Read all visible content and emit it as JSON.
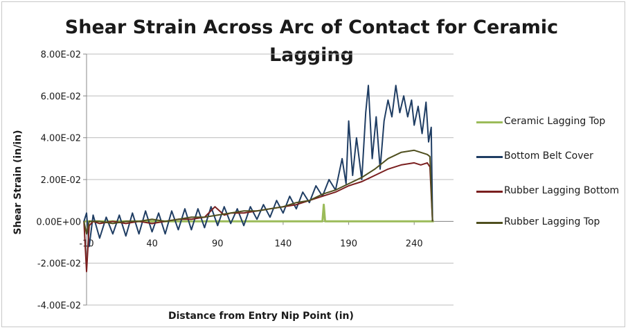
{
  "chart_data": {
    "type": "line",
    "title": "Shear Strain Across Arc of Contact for Ceramic Lagging",
    "xlabel": "Distance from Entry Nip Point (in)",
    "ylabel": "Shear Strain (in/in)",
    "xlim": [
      -10,
      270
    ],
    "ylim": [
      -0.04,
      0.08
    ],
    "x_ticks": [
      -10,
      40,
      90,
      140,
      190,
      240
    ],
    "x_tick_labels": [
      "-10",
      "40",
      "90",
      "140",
      "190",
      "240"
    ],
    "y_ticks": [
      0.08,
      0.06,
      0.04,
      0.02,
      0.0,
      -0.02,
      -0.04
    ],
    "y_tick_labels": [
      "8.00E-02",
      "6.00E-02",
      "4.00E-02",
      "2.00E-02",
      "0.00E+00",
      "-2.00E-02",
      "-4.00E-02"
    ],
    "grid": "horizontal",
    "legend_position": "right",
    "series": [
      {
        "name": "Ceramic Lagging Top",
        "color": "#9bbb59",
        "points": [
          [
            -12,
            0
          ],
          [
            170,
            0
          ],
          [
            171,
            0.008
          ],
          [
            172,
            0
          ],
          [
            255,
            0
          ]
        ]
      },
      {
        "name": "Bottom Belt Cover",
        "color": "#1f3d63",
        "points": [
          [
            -12,
            0
          ],
          [
            -10,
            0.004
          ],
          [
            -8,
            -0.012
          ],
          [
            -5,
            0.003
          ],
          [
            0,
            -0.008
          ],
          [
            5,
            0.002
          ],
          [
            10,
            -0.006
          ],
          [
            15,
            0.003
          ],
          [
            20,
            -0.007
          ],
          [
            25,
            0.004
          ],
          [
            30,
            -0.006
          ],
          [
            35,
            0.005
          ],
          [
            40,
            -0.005
          ],
          [
            45,
            0.004
          ],
          [
            50,
            -0.006
          ],
          [
            55,
            0.005
          ],
          [
            60,
            -0.004
          ],
          [
            65,
            0.006
          ],
          [
            70,
            -0.004
          ],
          [
            75,
            0.006
          ],
          [
            80,
            -0.003
          ],
          [
            85,
            0.007
          ],
          [
            90,
            -0.002
          ],
          [
            95,
            0.007
          ],
          [
            100,
            -0.001
          ],
          [
            105,
            0.006
          ],
          [
            110,
            -0.002
          ],
          [
            115,
            0.007
          ],
          [
            120,
            0.001
          ],
          [
            125,
            0.008
          ],
          [
            130,
            0.002
          ],
          [
            135,
            0.01
          ],
          [
            140,
            0.004
          ],
          [
            145,
            0.012
          ],
          [
            150,
            0.006
          ],
          [
            155,
            0.014
          ],
          [
            160,
            0.009
          ],
          [
            165,
            0.017
          ],
          [
            170,
            0.012
          ],
          [
            175,
            0.02
          ],
          [
            180,
            0.015
          ],
          [
            185,
            0.03
          ],
          [
            188,
            0.018
          ],
          [
            190,
            0.048
          ],
          [
            193,
            0.022
          ],
          [
            196,
            0.04
          ],
          [
            200,
            0.02
          ],
          [
            203,
            0.052
          ],
          [
            205,
            0.065
          ],
          [
            208,
            0.03
          ],
          [
            211,
            0.05
          ],
          [
            214,
            0.025
          ],
          [
            217,
            0.048
          ],
          [
            220,
            0.058
          ],
          [
            223,
            0.05
          ],
          [
            226,
            0.065
          ],
          [
            229,
            0.052
          ],
          [
            232,
            0.06
          ],
          [
            235,
            0.05
          ],
          [
            238,
            0.058
          ],
          [
            240,
            0.046
          ],
          [
            243,
            0.055
          ],
          [
            246,
            0.042
          ],
          [
            249,
            0.057
          ],
          [
            251,
            0.038
          ],
          [
            253,
            0.045
          ],
          [
            254,
            0
          ]
        ]
      },
      {
        "name": "Rubber Lagging Bottom",
        "color": "#7a1f1f",
        "points": [
          [
            -12,
            0
          ],
          [
            -10,
            -0.024
          ],
          [
            -8,
            -0.002
          ],
          [
            -5,
            0
          ],
          [
            0,
            -0.001
          ],
          [
            10,
            0
          ],
          [
            20,
            -0.001
          ],
          [
            30,
            0
          ],
          [
            40,
            -0.001
          ],
          [
            50,
            0
          ],
          [
            60,
            0.001
          ],
          [
            70,
            0.001
          ],
          [
            80,
            0.002
          ],
          [
            88,
            0.007
          ],
          [
            95,
            0.003
          ],
          [
            100,
            0.004
          ],
          [
            110,
            0.004
          ],
          [
            120,
            0.005
          ],
          [
            130,
            0.006
          ],
          [
            140,
            0.007
          ],
          [
            150,
            0.008
          ],
          [
            160,
            0.01
          ],
          [
            170,
            0.012
          ],
          [
            180,
            0.014
          ],
          [
            190,
            0.017
          ],
          [
            200,
            0.019
          ],
          [
            210,
            0.022
          ],
          [
            220,
            0.025
          ],
          [
            230,
            0.027
          ],
          [
            240,
            0.028
          ],
          [
            245,
            0.027
          ],
          [
            250,
            0.028
          ],
          [
            252,
            0.026
          ],
          [
            254,
            0
          ]
        ]
      },
      {
        "name": "Rubber Lagging Top",
        "color": "#4f4f1f",
        "points": [
          [
            -12,
            0
          ],
          [
            -10,
            -0.006
          ],
          [
            -8,
            0
          ],
          [
            0,
            0
          ],
          [
            10,
            -0.001
          ],
          [
            20,
            0
          ],
          [
            30,
            0
          ],
          [
            40,
            0.001
          ],
          [
            50,
            0
          ],
          [
            60,
            0.001
          ],
          [
            70,
            0.002
          ],
          [
            80,
            0.002
          ],
          [
            90,
            0.003
          ],
          [
            100,
            0.004
          ],
          [
            110,
            0.005
          ],
          [
            120,
            0.005
          ],
          [
            130,
            0.006
          ],
          [
            140,
            0.007
          ],
          [
            150,
            0.009
          ],
          [
            160,
            0.01
          ],
          [
            170,
            0.013
          ],
          [
            180,
            0.015
          ],
          [
            190,
            0.018
          ],
          [
            200,
            0.021
          ],
          [
            210,
            0.025
          ],
          [
            220,
            0.03
          ],
          [
            230,
            0.033
          ],
          [
            240,
            0.034
          ],
          [
            245,
            0.033
          ],
          [
            250,
            0.032
          ],
          [
            252,
            0.031
          ],
          [
            254,
            0
          ]
        ]
      }
    ]
  }
}
